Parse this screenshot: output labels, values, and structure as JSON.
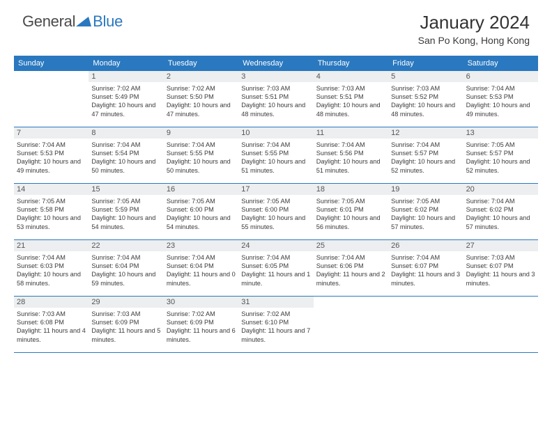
{
  "logo": {
    "part1": "General",
    "part2": "Blue"
  },
  "title": "January 2024",
  "location": "San Po Kong, Hong Kong",
  "colors": {
    "accent": "#2a78bf",
    "daynum_bg": "#eceeef",
    "text": "#3a3a3a",
    "background": "#ffffff"
  },
  "typography": {
    "body_fontsize_pt": 7,
    "title_fontsize_pt": 20,
    "header_fontsize_pt": 8
  },
  "layout": {
    "cols": 7,
    "rows": 5,
    "first_weekday_offset": 1
  },
  "day_headers": [
    "Sunday",
    "Monday",
    "Tuesday",
    "Wednesday",
    "Thursday",
    "Friday",
    "Saturday"
  ],
  "days": [
    {
      "n": "1",
      "sr": "7:02 AM",
      "ss": "5:49 PM",
      "dl": "10 hours and 47 minutes."
    },
    {
      "n": "2",
      "sr": "7:02 AM",
      "ss": "5:50 PM",
      "dl": "10 hours and 47 minutes."
    },
    {
      "n": "3",
      "sr": "7:03 AM",
      "ss": "5:51 PM",
      "dl": "10 hours and 48 minutes."
    },
    {
      "n": "4",
      "sr": "7:03 AM",
      "ss": "5:51 PM",
      "dl": "10 hours and 48 minutes."
    },
    {
      "n": "5",
      "sr": "7:03 AM",
      "ss": "5:52 PM",
      "dl": "10 hours and 48 minutes."
    },
    {
      "n": "6",
      "sr": "7:04 AM",
      "ss": "5:53 PM",
      "dl": "10 hours and 49 minutes."
    },
    {
      "n": "7",
      "sr": "7:04 AM",
      "ss": "5:53 PM",
      "dl": "10 hours and 49 minutes."
    },
    {
      "n": "8",
      "sr": "7:04 AM",
      "ss": "5:54 PM",
      "dl": "10 hours and 50 minutes."
    },
    {
      "n": "9",
      "sr": "7:04 AM",
      "ss": "5:55 PM",
      "dl": "10 hours and 50 minutes."
    },
    {
      "n": "10",
      "sr": "7:04 AM",
      "ss": "5:55 PM",
      "dl": "10 hours and 51 minutes."
    },
    {
      "n": "11",
      "sr": "7:04 AM",
      "ss": "5:56 PM",
      "dl": "10 hours and 51 minutes."
    },
    {
      "n": "12",
      "sr": "7:04 AM",
      "ss": "5:57 PM",
      "dl": "10 hours and 52 minutes."
    },
    {
      "n": "13",
      "sr": "7:05 AM",
      "ss": "5:57 PM",
      "dl": "10 hours and 52 minutes."
    },
    {
      "n": "14",
      "sr": "7:05 AM",
      "ss": "5:58 PM",
      "dl": "10 hours and 53 minutes."
    },
    {
      "n": "15",
      "sr": "7:05 AM",
      "ss": "5:59 PM",
      "dl": "10 hours and 54 minutes."
    },
    {
      "n": "16",
      "sr": "7:05 AM",
      "ss": "6:00 PM",
      "dl": "10 hours and 54 minutes."
    },
    {
      "n": "17",
      "sr": "7:05 AM",
      "ss": "6:00 PM",
      "dl": "10 hours and 55 minutes."
    },
    {
      "n": "18",
      "sr": "7:05 AM",
      "ss": "6:01 PM",
      "dl": "10 hours and 56 minutes."
    },
    {
      "n": "19",
      "sr": "7:05 AM",
      "ss": "6:02 PM",
      "dl": "10 hours and 57 minutes."
    },
    {
      "n": "20",
      "sr": "7:04 AM",
      "ss": "6:02 PM",
      "dl": "10 hours and 57 minutes."
    },
    {
      "n": "21",
      "sr": "7:04 AM",
      "ss": "6:03 PM",
      "dl": "10 hours and 58 minutes."
    },
    {
      "n": "22",
      "sr": "7:04 AM",
      "ss": "6:04 PM",
      "dl": "10 hours and 59 minutes."
    },
    {
      "n": "23",
      "sr": "7:04 AM",
      "ss": "6:04 PM",
      "dl": "11 hours and 0 minutes."
    },
    {
      "n": "24",
      "sr": "7:04 AM",
      "ss": "6:05 PM",
      "dl": "11 hours and 1 minute."
    },
    {
      "n": "25",
      "sr": "7:04 AM",
      "ss": "6:06 PM",
      "dl": "11 hours and 2 minutes."
    },
    {
      "n": "26",
      "sr": "7:04 AM",
      "ss": "6:07 PM",
      "dl": "11 hours and 3 minutes."
    },
    {
      "n": "27",
      "sr": "7:03 AM",
      "ss": "6:07 PM",
      "dl": "11 hours and 3 minutes."
    },
    {
      "n": "28",
      "sr": "7:03 AM",
      "ss": "6:08 PM",
      "dl": "11 hours and 4 minutes."
    },
    {
      "n": "29",
      "sr": "7:03 AM",
      "ss": "6:09 PM",
      "dl": "11 hours and 5 minutes."
    },
    {
      "n": "30",
      "sr": "7:02 AM",
      "ss": "6:09 PM",
      "dl": "11 hours and 6 minutes."
    },
    {
      "n": "31",
      "sr": "7:02 AM",
      "ss": "6:10 PM",
      "dl": "11 hours and 7 minutes."
    }
  ],
  "labels": {
    "sunrise": "Sunrise:",
    "sunset": "Sunset:",
    "daylight": "Daylight:"
  }
}
